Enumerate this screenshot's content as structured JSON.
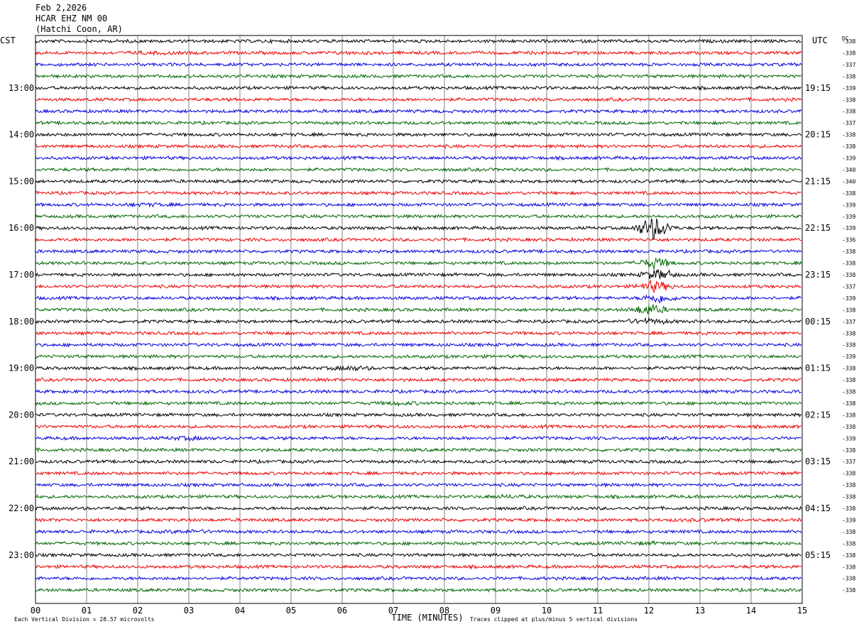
{
  "header": {
    "date": "Feb 2,2026",
    "station": "HCAR EHZ NM 00",
    "location": "(Hatchi Coon, AR)"
  },
  "chart_data": {
    "type": "line",
    "title": "Feb 2,2026",
    "left_axis_label": "CST",
    "right_axis_label": "UTC",
    "dc_label": "DC",
    "xlabel": "TIME (MINUTES)",
    "x_ticks": [
      "00",
      "01",
      "02",
      "03",
      "04",
      "05",
      "06",
      "07",
      "08",
      "09",
      "10",
      "11",
      "12",
      "13",
      "14",
      "15"
    ],
    "xlim": [
      0,
      15
    ],
    "left_hour_labels": [
      "13:00",
      "14:00",
      "15:00",
      "16:00",
      "17:00",
      "18:00",
      "19:00",
      "20:00",
      "21:00",
      "22:00",
      "23:00"
    ],
    "right_hour_labels": [
      "19:15",
      "20:15",
      "21:15",
      "22:15",
      "23:15",
      "00:15",
      "01:15",
      "02:15",
      "03:15",
      "04:15",
      "05:15"
    ],
    "dc_offsets": [
      "-338",
      "-338",
      "-337",
      "-338",
      "-339",
      "-338",
      "-338",
      "-337",
      "-338",
      "-338",
      "-339",
      "-340",
      "-340",
      "-338",
      "-339",
      "-339",
      "-339",
      "-336",
      "-338",
      "-338",
      "-338",
      "-337",
      "-339",
      "-338",
      "-337",
      "-338",
      "-338",
      "-339",
      "-338",
      "-338",
      "-338",
      "-338",
      "-338",
      "-338",
      "-339",
      "-338",
      "-337",
      "-338",
      "-338",
      "-338",
      "-338",
      "-339",
      "-338",
      "-338",
      "-338",
      "-338",
      "-338",
      "-338"
    ],
    "trace_colors": [
      "#000000",
      "#ee0000",
      "#0000dd",
      "#006600"
    ],
    "events": [
      {
        "trace": 1,
        "minute": 2.3,
        "amplitude": 1.4
      },
      {
        "trace": 1,
        "minute": 6.2,
        "amplitude": 1.2
      },
      {
        "trace": 14,
        "minute": 2.2,
        "amplitude": 1.5
      },
      {
        "trace": 16,
        "minute": 12.1,
        "amplitude": 8
      },
      {
        "trace": 19,
        "minute": 12.1,
        "amplitude": 4
      },
      {
        "trace": 20,
        "minute": 12.2,
        "amplitude": 4
      },
      {
        "trace": 21,
        "minute": 12.1,
        "amplitude": 4
      },
      {
        "trace": 22,
        "minute": 12.2,
        "amplitude": 3.5
      },
      {
        "trace": 23,
        "minute": 12.0,
        "amplitude": 4
      },
      {
        "trace": 24,
        "minute": 12.0,
        "amplitude": 2.2
      },
      {
        "trace": 28,
        "minute": 6.2,
        "amplitude": 1.8
      },
      {
        "trace": 31,
        "minute": 7.1,
        "amplitude": 1.5
      },
      {
        "trace": 34,
        "minute": 3.0,
        "amplitude": 1.6
      },
      {
        "trace": 39,
        "minute": 9.2,
        "amplitude": 1.5
      },
      {
        "trace": 41,
        "minute": 13.0,
        "amplitude": 1.3
      },
      {
        "trace": 42,
        "minute": 3.0,
        "amplitude": 1.6
      },
      {
        "trace": 43,
        "minute": 12.0,
        "amplitude": 1.4
      }
    ],
    "footer_left": "Each Vertical Division =   28.57 microvolts",
    "footer_right": "Traces clipped at plus/minus 5 vertical divisions"
  }
}
